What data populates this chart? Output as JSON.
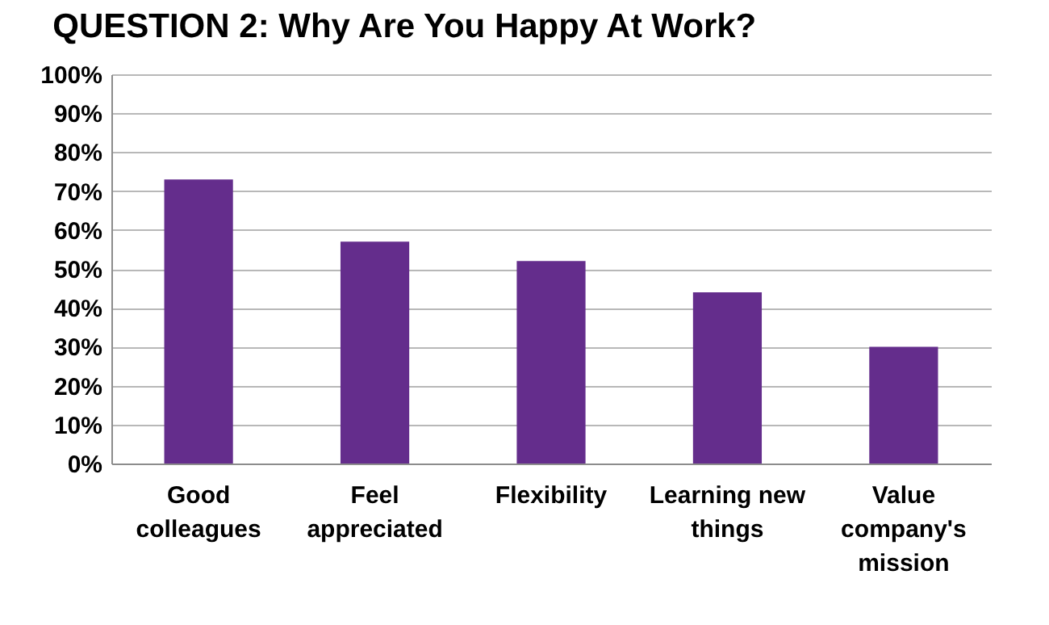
{
  "chart_data": {
    "type": "bar",
    "title": "QUESTION 2: Why Are You Happy At Work?",
    "categories": [
      "Good colleagues",
      "Feel appreciated",
      "Flexibility",
      "Learning new things",
      "Value company's mission"
    ],
    "values": [
      73,
      57,
      52,
      44,
      30
    ],
    "color": "#642d8c",
    "ylim": [
      0,
      100
    ],
    "yticks": [
      {
        "value": 0,
        "label": "0%"
      },
      {
        "value": 10,
        "label": "10%"
      },
      {
        "value": 20,
        "label": "20%"
      },
      {
        "value": 30,
        "label": "30%"
      },
      {
        "value": 40,
        "label": "40%"
      },
      {
        "value": 50,
        "label": "50%"
      },
      {
        "value": 60,
        "label": "60%"
      },
      {
        "value": 70,
        "label": "70%"
      },
      {
        "value": 80,
        "label": "80%"
      },
      {
        "value": 90,
        "label": "90%"
      },
      {
        "value": 100,
        "label": "100%"
      }
    ],
    "grid": "y"
  }
}
